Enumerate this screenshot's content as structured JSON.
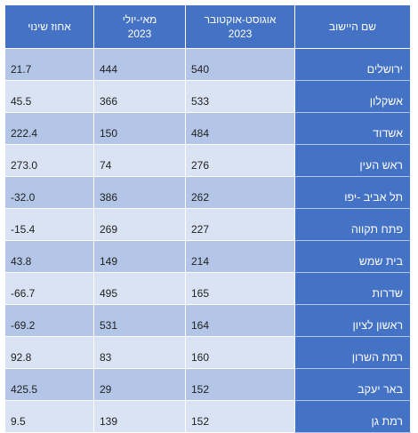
{
  "table": {
    "headers": [
      {
        "line1": "שם היישוב",
        "line2": ""
      },
      {
        "line1": "אוגוסט-אוקטובר",
        "line2": "2023"
      },
      {
        "line1": "מאי-יולי",
        "line2": "2023"
      },
      {
        "line1": "אחוז שינוי",
        "line2": ""
      }
    ],
    "rows": [
      {
        "name": "ירושלים",
        "aug_oct": "540",
        "may_jul": "444",
        "change": "21.7"
      },
      {
        "name": "אשקלון",
        "aug_oct": "533",
        "may_jul": "366",
        "change": "45.5"
      },
      {
        "name": "אשדוד",
        "aug_oct": "484",
        "may_jul": "150",
        "change": "222.4"
      },
      {
        "name": "ראש העין",
        "aug_oct": "276",
        "may_jul": "74",
        "change": "273.0"
      },
      {
        "name": "תל אביב -יפו",
        "aug_oct": "262",
        "may_jul": "386",
        "change": "-32.0"
      },
      {
        "name": "פתח תקווה",
        "aug_oct": "227",
        "may_jul": "269",
        "change": "-15.4"
      },
      {
        "name": "בית שמש",
        "aug_oct": "214",
        "may_jul": "149",
        "change": "43.8"
      },
      {
        "name": "שדרות",
        "aug_oct": "165",
        "may_jul": "495",
        "change": "-66.7"
      },
      {
        "name": "ראשון לציון",
        "aug_oct": "164",
        "may_jul": "531",
        "change": "-69.2"
      },
      {
        "name": "רמת השרון",
        "aug_oct": "160",
        "may_jul": "83",
        "change": "92.8"
      },
      {
        "name": "באר יעקב",
        "aug_oct": "152",
        "may_jul": "29",
        "change": "425.5"
      },
      {
        "name": "רמת גן",
        "aug_oct": "152",
        "may_jul": "139",
        "change": "9.5"
      }
    ]
  },
  "colors": {
    "header_bg": "#4472c4",
    "header_text": "#ffffff",
    "row_odd": "#b4c6e7",
    "row_even": "#dae3f3"
  }
}
